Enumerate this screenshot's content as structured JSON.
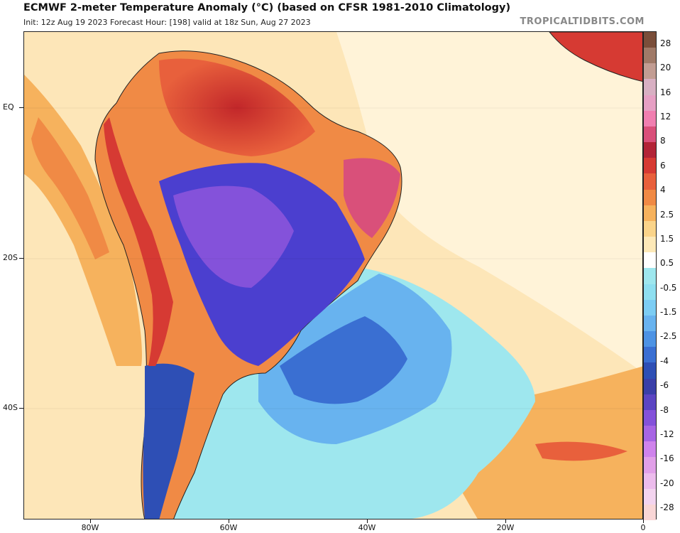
{
  "header": {
    "title": "ECMWF 2-meter Temperature Anomaly (°C) (based on CFSR 1981-2010 Climatology)",
    "subtitle": "Init: 12z Aug 19 2023   Forecast Hour: [198]   valid at 18z Sun, Aug 27 2023",
    "source": "TROPICALTIDBITS.COM"
  },
  "axes": {
    "y_labels": [
      "EQ",
      "20S",
      "40S"
    ],
    "x_labels": [
      "80W",
      "60W",
      "40W",
      "20W",
      "0"
    ]
  },
  "colorbar": {
    "labels": [
      "28",
      "20",
      "16",
      "12",
      "8",
      "6",
      "4",
      "2.5",
      "1.5",
      "0.5",
      "-0.5",
      "-1.5",
      "-2.5",
      "-4",
      "-6",
      "-8",
      "-12",
      "-16",
      "-20",
      "-28"
    ],
    "colors": [
      "#7a4e3a",
      "#a07a68",
      "#c29d93",
      "#d8b0c3",
      "#e6a0c4",
      "#f07fb0",
      "#d9507a",
      "#b22437",
      "#d63a33",
      "#e8603c",
      "#f08a45",
      "#f6b25d",
      "#fad48a",
      "#fde9b8",
      "#ffffff",
      "#9ee7ee",
      "#8edff0",
      "#7ccdf4",
      "#68b3ef",
      "#4d93e4",
      "#3a6fd2",
      "#2e4fb5",
      "#3a3fa8",
      "#5b45c2",
      "#8452da",
      "#a765e4",
      "#cf83ec",
      "#e1a0e8",
      "#ecbcec",
      "#f3d4ef",
      "#f9d6d6"
    ]
  },
  "map": {
    "ocean_base_color": "#fdedc5",
    "cold_anomaly_color": "#4b3fcf",
    "warm_anomaly_color": "#d94c30"
  }
}
